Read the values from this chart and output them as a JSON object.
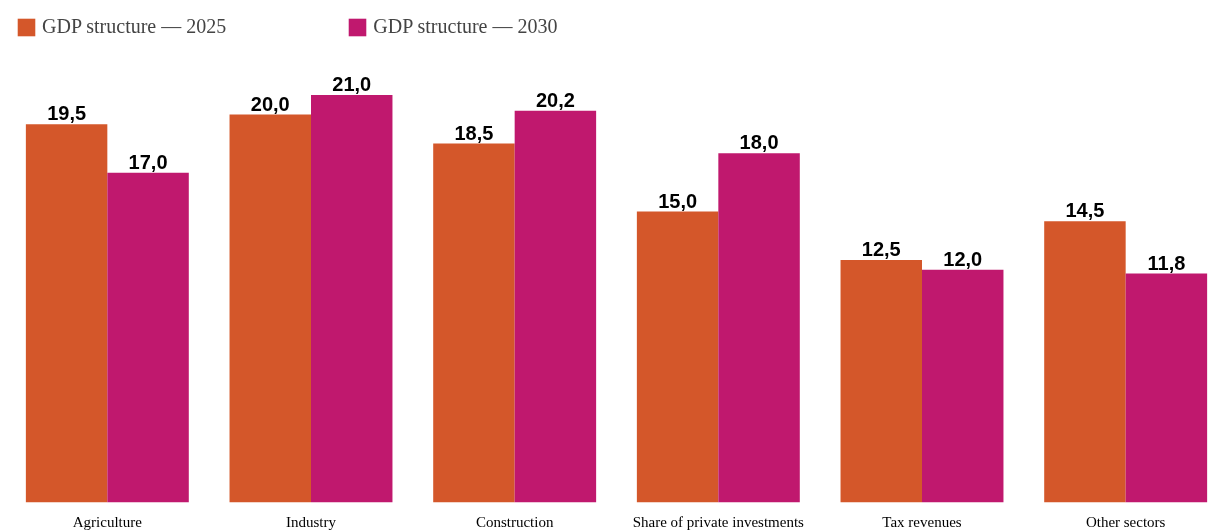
{
  "chart_data": {
    "type": "bar",
    "categories": [
      "Agriculture",
      "Industry",
      "Construction",
      "Share of private investments",
      "Tax revenues",
      "Other sectors"
    ],
    "series": [
      {
        "name": "GDP structure — 2025",
        "color": "#d4572a",
        "values": [
          19.5,
          20.0,
          18.5,
          15.0,
          12.5,
          14.5
        ],
        "value_labels": [
          "19,5",
          "20,0",
          "18,5",
          "15,0",
          "12,5",
          "14,5"
        ]
      },
      {
        "name": "GDP structure — 2030",
        "color": "#c0186e",
        "values": [
          17.0,
          21.0,
          20.2,
          18.0,
          12.0,
          11.8
        ],
        "value_labels": [
          "17,0",
          "21,0",
          "20,2",
          "18,0",
          "12,0",
          "11,8"
        ]
      }
    ],
    "tick_labels": "x",
    "grid": false,
    "legend": "top"
  }
}
